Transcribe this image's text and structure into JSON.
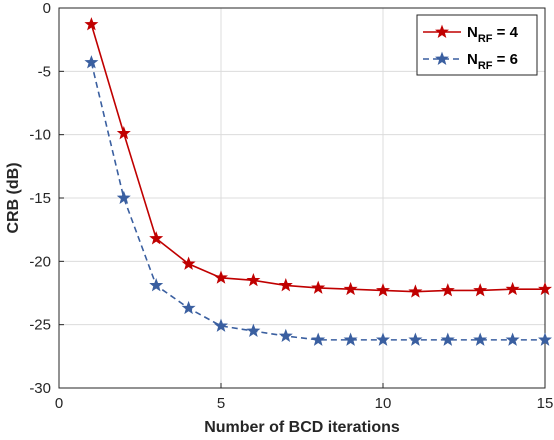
{
  "chart_data": {
    "type": "line",
    "title": "",
    "xlabel": "Number of BCD iterations",
    "ylabel": "CRB (dB)",
    "xlim": [
      0,
      15
    ],
    "ylim": [
      -30,
      0
    ],
    "xticks": [
      "0",
      "5",
      "10",
      "15"
    ],
    "yticks": [
      "0",
      "-5",
      "-10",
      "-15",
      "-20",
      "-25",
      "-30"
    ],
    "grid": true,
    "legend_position": "top-right",
    "x": [
      1,
      2,
      3,
      4,
      5,
      6,
      7,
      8,
      9,
      10,
      11,
      12,
      13,
      14,
      15
    ],
    "series": [
      {
        "name_main": "N",
        "name_sub": "RF",
        "name_rest": " = 4",
        "color": "#c00000",
        "line_style": "solid",
        "marker": "star",
        "values": [
          -1.3,
          -9.9,
          -18.2,
          -20.2,
          -21.3,
          -21.5,
          -21.9,
          -22.1,
          -22.2,
          -22.3,
          -22.4,
          -22.3,
          -22.3,
          -22.2,
          -22.2
        ]
      },
      {
        "name_main": "N",
        "name_sub": "RF",
        "name_rest": " = 6",
        "color": "#3a5fa0",
        "line_style": "dashed",
        "marker": "star",
        "values": [
          -4.3,
          -15.0,
          -21.9,
          -23.7,
          -25.1,
          -25.5,
          -25.9,
          -26.2,
          -26.2,
          -26.2,
          -26.2,
          -26.2,
          -26.2,
          -26.2,
          -26.2
        ]
      }
    ]
  }
}
